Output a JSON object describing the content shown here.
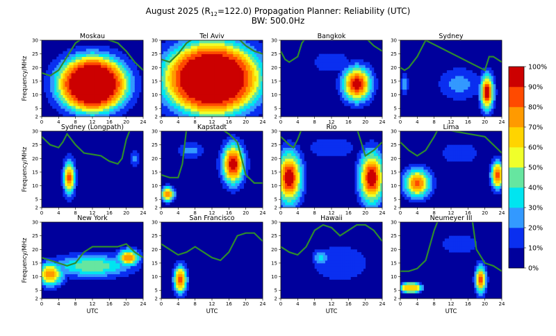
{
  "figure": {
    "title_line1": "August 2025 (R",
    "title_sub": "12",
    "title_line1_rest": "=122.0) Propagation Planner: Reliability (UTC)",
    "title_line2": "BW: 500.0Hz"
  },
  "colors": {
    "levels": [
      "#00009c",
      "#0a2ff0",
      "#3399ff",
      "#00e5f0",
      "#66e6a0",
      "#f0ff2a",
      "#ffd400",
      "#ff9a00",
      "#ff4a00",
      "#cc0000",
      "#990000"
    ],
    "muf_line": "#2e8b2e",
    "contour": "#000000"
  },
  "chart_data": {
    "type": "heatmap",
    "x_label": "UTC",
    "y_label": "Frequency/MHz",
    "x_ticks": [
      0,
      4,
      8,
      12,
      16,
      20,
      24
    ],
    "y_ticks": [
      2,
      5,
      10,
      15,
      20,
      25,
      30
    ],
    "xlim": [
      0,
      24
    ],
    "ylim": [
      2,
      30
    ],
    "colorbar": {
      "ticks": [
        "100%",
        "90%",
        "80%",
        "70%",
        "60%",
        "50%",
        "40%",
        "30%",
        "20%",
        "10%",
        "0%"
      ],
      "levels": [
        0,
        10,
        20,
        30,
        40,
        50,
        60,
        70,
        80,
        90,
        100
      ]
    },
    "panels": [
      {
        "name": "Moskau",
        "muf": [
          [
            0,
            18
          ],
          [
            2,
            17
          ],
          [
            4,
            19
          ],
          [
            6,
            24
          ],
          [
            8,
            29
          ],
          [
            10,
            31
          ],
          [
            14,
            31
          ],
          [
            16,
            30
          ],
          [
            18,
            29
          ],
          [
            20,
            26
          ],
          [
            22,
            22
          ],
          [
            24,
            19
          ]
        ],
        "blobs": [
          {
            "cx": 12,
            "cy": 14,
            "sx": 8,
            "sy": 10,
            "amp": 100,
            "flat": true
          }
        ]
      },
      {
        "name": "Tel Aviv",
        "muf": [
          [
            0,
            23
          ],
          [
            2,
            22
          ],
          [
            4,
            25
          ],
          [
            6,
            29
          ],
          [
            8,
            31
          ],
          [
            18,
            31
          ],
          [
            20,
            28
          ],
          [
            22,
            26
          ],
          [
            24,
            25
          ]
        ],
        "blobs": [
          {
            "cx": 12,
            "cy": 16,
            "sx": 11,
            "sy": 13,
            "amp": 100,
            "flat": true
          }
        ]
      },
      {
        "name": "Bangkok",
        "muf": [
          [
            0,
            26
          ],
          [
            1,
            23
          ],
          [
            2,
            22
          ],
          [
            4,
            24
          ],
          [
            5,
            29
          ],
          [
            6,
            31
          ],
          [
            20,
            31
          ],
          [
            22,
            28
          ],
          [
            24,
            26
          ]
        ],
        "blobs": [
          {
            "cx": 18,
            "cy": 14,
            "sx": 3.2,
            "sy": 6,
            "amp": 100
          },
          {
            "cx": 12,
            "cy": 22,
            "sx": 5,
            "sy": 4,
            "amp": 20
          }
        ]
      },
      {
        "name": "Sydney",
        "muf": [
          [
            0,
            20
          ],
          [
            1,
            19
          ],
          [
            2,
            20
          ],
          [
            4,
            24
          ],
          [
            5,
            27
          ],
          [
            6,
            30
          ],
          [
            20,
            19
          ],
          [
            21,
            24
          ],
          [
            22,
            24
          ],
          [
            24,
            22
          ]
        ],
        "blobs": [
          {
            "cx": 20.5,
            "cy": 11,
            "sx": 1.5,
            "sy": 6,
            "amp": 100
          },
          {
            "cx": 14,
            "cy": 14,
            "sx": 5,
            "sy": 6,
            "amp": 25
          },
          {
            "cx": 1,
            "cy": 14,
            "sx": 1,
            "sy": 4,
            "amp": 25
          }
        ]
      },
      {
        "name": "Sydney (Longpath)",
        "muf": [
          [
            0,
            28
          ],
          [
            2,
            25
          ],
          [
            4,
            24
          ],
          [
            5,
            26
          ],
          [
            6,
            29
          ],
          [
            8,
            25
          ],
          [
            10,
            22
          ],
          [
            14,
            21
          ],
          [
            16,
            19
          ],
          [
            18,
            18
          ],
          [
            19,
            20
          ],
          [
            20,
            27
          ],
          [
            21,
            31
          ]
        ],
        "blobs": [
          {
            "cx": 6.5,
            "cy": 13,
            "sx": 1.3,
            "sy": 6,
            "amp": 85
          },
          {
            "cx": 22,
            "cy": 20,
            "sx": 1,
            "sy": 3,
            "amp": 25
          }
        ]
      },
      {
        "name": "Kapstadt",
        "muf": [
          [
            0,
            14
          ],
          [
            2,
            13
          ],
          [
            4,
            13
          ],
          [
            5,
            18
          ],
          [
            6,
            31
          ],
          [
            14,
            31
          ],
          [
            16,
            29
          ],
          [
            18,
            26
          ],
          [
            20,
            14
          ],
          [
            22,
            11
          ],
          [
            24,
            11
          ]
        ],
        "blobs": [
          {
            "cx": 17,
            "cy": 18,
            "sx": 2.5,
            "sy": 7,
            "amp": 100
          },
          {
            "cx": 1.5,
            "cy": 7,
            "sx": 1.5,
            "sy": 2.5,
            "amp": 85
          },
          {
            "cx": 7,
            "cy": 23,
            "sx": 3,
            "sy": 3,
            "amp": 25
          }
        ]
      },
      {
        "name": "Rio",
        "muf": [
          [
            0,
            28
          ],
          [
            2,
            25
          ],
          [
            3,
            24
          ],
          [
            4,
            27
          ],
          [
            5,
            31
          ],
          [
            18,
            31
          ],
          [
            19,
            26
          ],
          [
            20,
            21
          ],
          [
            22,
            23
          ],
          [
            24,
            26
          ]
        ],
        "blobs": [
          {
            "cx": 2,
            "cy": 13,
            "sx": 2.8,
            "sy": 9,
            "amp": 100
          },
          {
            "cx": 21.5,
            "cy": 13,
            "sx": 2.8,
            "sy": 9,
            "amp": 100
          },
          {
            "cx": 12,
            "cy": 24,
            "sx": 6,
            "sy": 4,
            "amp": 20
          }
        ]
      },
      {
        "name": "Lima",
        "muf": [
          [
            0,
            26
          ],
          [
            2,
            23
          ],
          [
            4,
            21
          ],
          [
            6,
            23
          ],
          [
            8,
            28
          ],
          [
            9,
            31
          ],
          [
            20,
            28
          ],
          [
            22,
            25
          ],
          [
            24,
            22
          ]
        ],
        "blobs": [
          {
            "cx": 4,
            "cy": 11,
            "sx": 3,
            "sy": 5,
            "amp": 85
          },
          {
            "cx": 23,
            "cy": 14,
            "sx": 1.5,
            "sy": 5,
            "amp": 85
          },
          {
            "cx": 14,
            "cy": 22,
            "sx": 5,
            "sy": 4,
            "amp": 20
          }
        ]
      },
      {
        "name": "New York",
        "muf": [
          [
            0,
            17
          ],
          [
            2,
            16
          ],
          [
            4,
            15
          ],
          [
            6,
            14
          ],
          [
            8,
            15
          ],
          [
            10,
            19
          ],
          [
            12,
            21
          ],
          [
            16,
            21
          ],
          [
            18,
            21
          ],
          [
            20,
            22
          ],
          [
            22,
            19
          ],
          [
            24,
            17
          ]
        ],
        "blobs": [
          {
            "cx": 2,
            "cy": 11,
            "sx": 3,
            "sy": 4,
            "amp": 80
          },
          {
            "cx": 20.5,
            "cy": 17,
            "sx": 2.5,
            "sy": 3,
            "amp": 80
          },
          {
            "cx": 12,
            "cy": 14,
            "sx": 9,
            "sy": 4,
            "amp": 50
          }
        ]
      },
      {
        "name": "San Francisco",
        "muf": [
          [
            0,
            22
          ],
          [
            2,
            20
          ],
          [
            4,
            18
          ],
          [
            6,
            19
          ],
          [
            8,
            21
          ],
          [
            10,
            19
          ],
          [
            12,
            17
          ],
          [
            14,
            16
          ],
          [
            16,
            19
          ],
          [
            18,
            25
          ],
          [
            20,
            26
          ],
          [
            22,
            26
          ],
          [
            24,
            23
          ]
        ],
        "blobs": [
          {
            "cx": 4.5,
            "cy": 9,
            "sx": 1.5,
            "sy": 5,
            "amp": 85
          }
        ]
      },
      {
        "name": "Hawaii",
        "muf": [
          [
            0,
            21
          ],
          [
            2,
            19
          ],
          [
            4,
            18
          ],
          [
            6,
            21
          ],
          [
            8,
            27
          ],
          [
            10,
            29
          ],
          [
            12,
            28
          ],
          [
            14,
            25
          ],
          [
            16,
            27
          ],
          [
            18,
            29
          ],
          [
            20,
            29
          ],
          [
            22,
            27
          ],
          [
            24,
            23
          ]
        ],
        "blobs": [
          {
            "cx": 9.5,
            "cy": 17,
            "sx": 2,
            "sy": 3,
            "amp": 35
          },
          {
            "cx": 14,
            "cy": 15,
            "sx": 8,
            "sy": 8,
            "amp": 18
          }
        ]
      },
      {
        "name": "Neumeyer III",
        "muf": [
          [
            0,
            12
          ],
          [
            2,
            12
          ],
          [
            4,
            13
          ],
          [
            6,
            16
          ],
          [
            8,
            27
          ],
          [
            9,
            31
          ],
          [
            17,
            31
          ],
          [
            18,
            20
          ],
          [
            20,
            15
          ],
          [
            22,
            14
          ],
          [
            24,
            12
          ]
        ],
        "blobs": [
          {
            "cx": 2.5,
            "cy": 6,
            "sx": 2.5,
            "sy": 1.8,
            "amp": 65,
            "flat": true
          },
          {
            "cx": 19,
            "cy": 9,
            "sx": 1.2,
            "sy": 5,
            "amp": 85
          },
          {
            "cx": 14,
            "cy": 22,
            "sx": 6,
            "sy": 5,
            "amp": 15
          }
        ]
      }
    ]
  }
}
